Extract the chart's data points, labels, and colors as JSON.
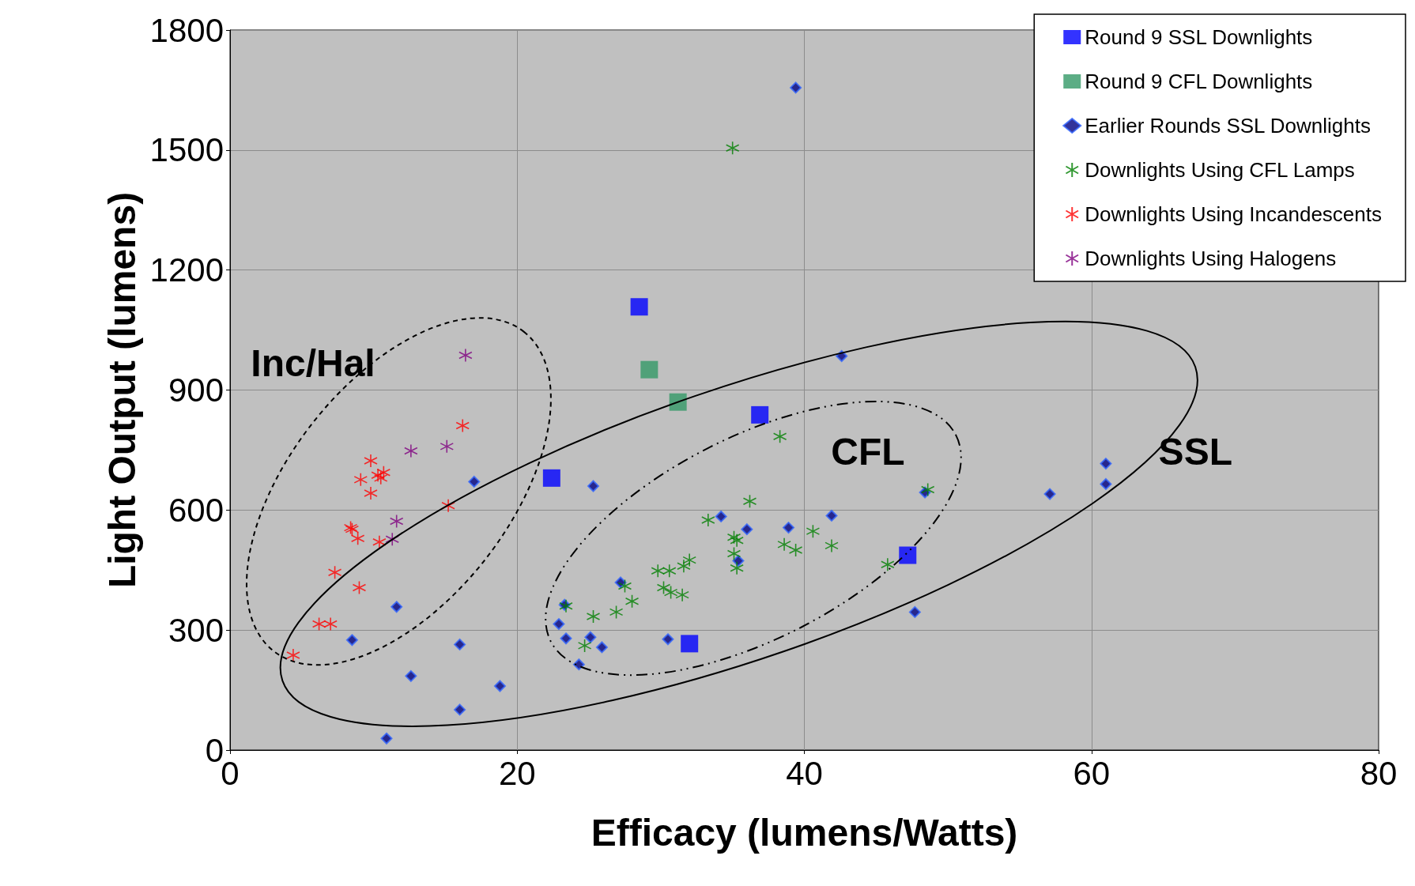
{
  "chart_data": {
    "type": "scatter",
    "xlabel": "Efficacy (lumens/Watts)",
    "ylabel": "Light Output (lumens)",
    "xlim": [
      0,
      80
    ],
    "xticks": [
      0,
      20,
      40,
      60,
      80
    ],
    "ylim": [
      0,
      1800
    ],
    "yticks": [
      0,
      300,
      600,
      900,
      1200,
      1500,
      1800
    ],
    "grid": true,
    "legend": "top right",
    "annotations": [
      "Inc/Hal",
      "CFL",
      "SSL"
    ],
    "series": [
      {
        "name": "Round 9 SSL Downlights",
        "color": "#0000ff",
        "marker": "square",
        "x": [
          28.5,
          22.4,
          36.9,
          47.2,
          32.0
        ],
        "values": [
          1108,
          680,
          838,
          487,
          266
        ]
      },
      {
        "name": "Round 9 CFL Downlights",
        "color": "#339966",
        "marker": "square",
        "x": [
          29.2,
          31.2
        ],
        "values": [
          951,
          870
        ]
      },
      {
        "name": "Earlier Rounds SSL Downlights",
        "color": "#000080",
        "marker": "diamond",
        "x": [
          39.4,
          42.6,
          17.0,
          25.3,
          41.9,
          34.2,
          36.0,
          38.9,
          35.4,
          48.4,
          57.1,
          61.0,
          61.0,
          47.7,
          27.2,
          23.3,
          22.9,
          23.4,
          25.1,
          25.9,
          24.3,
          30.5,
          11.6,
          8.5,
          12.6,
          16.0,
          16.0,
          18.8,
          10.9
        ],
        "values": [
          1656,
          985,
          671,
          660,
          586,
          584,
          552,
          556,
          473,
          644,
          640,
          716,
          665,
          345,
          419,
          363,
          315,
          279,
          282,
          257,
          214,
          277,
          358,
          275,
          185,
          264,
          101,
          160,
          29
        ]
      },
      {
        "name": "Downlights Using CFL Lamps",
        "color": "#008000",
        "marker": "cross",
        "x": [
          35.0,
          38.3,
          36.2,
          33.3,
          35.1,
          35.3,
          35.1,
          35.3,
          32.0,
          31.6,
          29.8,
          30.6,
          30.2,
          30.7,
          31.5,
          28.0,
          27.5,
          26.9,
          25.3,
          23.4,
          24.7,
          38.6,
          39.4,
          40.6,
          41.9,
          45.8,
          48.6
        ],
        "values": [
          1505,
          784,
          622,
          575,
          532,
          524,
          491,
          455,
          475,
          460,
          448,
          448,
          406,
          394,
          388,
          372,
          410,
          345,
          334,
          360,
          261,
          514,
          500,
          547,
          511,
          464,
          651
        ]
      },
      {
        "name": "Downlights Using Incandescents",
        "color": "#ff0000",
        "marker": "cross",
        "x": [
          16.2,
          9.8,
          9.1,
          10.3,
          10.7,
          10.5,
          9.8,
          15.2,
          8.4,
          8.5,
          8.9,
          10.4,
          7.3,
          9.0,
          6.2,
          7.0,
          4.4
        ],
        "values": [
          811,
          723,
          676,
          687,
          694,
          680,
          642,
          611,
          556,
          552,
          529,
          520,
          444,
          406,
          315,
          315,
          237
        ]
      },
      {
        "name": "Downlights Using Halogens",
        "color": "#800080",
        "marker": "cross",
        "x": [
          16.4,
          12.6,
          15.1,
          11.6,
          11.3
        ],
        "values": [
          987,
          748,
          759,
          572,
          527
        ]
      }
    ]
  }
}
